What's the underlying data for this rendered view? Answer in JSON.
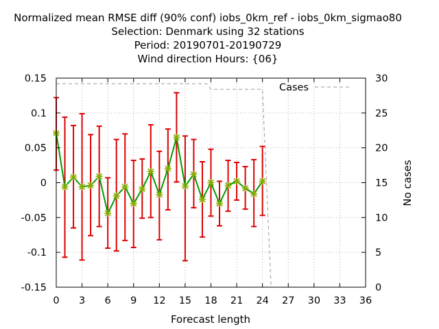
{
  "chart_data": {
    "type": "line",
    "title_lines": [
      "Normalized mean RMSE diff (90% conf) iobs_0km_ref - iobs_0km_sigmao80",
      "Selection: Denmark using    32 stations",
      "Period: 20190701-20190729",
      "Wind direction   Hours: {06}"
    ],
    "xlabel": "Forecast length",
    "ylabel": "",
    "y2label": "No cases",
    "xlim": [
      0,
      36
    ],
    "ylim": [
      -0.15,
      0.15
    ],
    "y2lim": [
      0,
      30
    ],
    "xticks": [
      "0",
      "3",
      "6",
      "9",
      "12",
      "15",
      "18",
      "21",
      "24",
      "27",
      "30",
      "33",
      "36"
    ],
    "yticks": [
      "0.15",
      "0.1",
      "0.05",
      "0",
      "-0.05",
      "-0.1",
      "-0.15"
    ],
    "y2ticks": [
      "30",
      "25",
      "20",
      "15",
      "10",
      "5",
      "0"
    ],
    "grid": true,
    "legend_position": "top-right",
    "series": [
      {
        "name": "",
        "color": "#009900",
        "marker_color": "#88aa00",
        "errorbar_color": "#dd0000",
        "x": [
          0,
          1,
          2,
          3,
          4,
          5,
          6,
          7,
          8,
          9,
          10,
          11,
          12,
          13,
          14,
          15,
          16,
          17,
          18,
          19,
          20,
          21,
          22,
          23,
          24
        ],
        "y": [
          0.071,
          -0.006,
          0.008,
          -0.006,
          -0.004,
          0.009,
          -0.044,
          -0.019,
          -0.006,
          -0.03,
          -0.009,
          0.016,
          -0.017,
          0.02,
          0.065,
          -0.005,
          0.012,
          -0.024,
          0.0,
          -0.03,
          -0.004,
          0.002,
          -0.008,
          -0.016,
          0.002
        ],
        "err_low": [
          0.018,
          -0.107,
          -0.065,
          -0.111,
          -0.076,
          -0.063,
          -0.094,
          -0.098,
          -0.083,
          -0.093,
          -0.051,
          -0.05,
          -0.082,
          -0.039,
          0.001,
          -0.112,
          -0.036,
          -0.078,
          -0.048,
          -0.062,
          -0.041,
          -0.025,
          -0.038,
          -0.063,
          -0.047
        ],
        "err_high": [
          0.122,
          0.094,
          0.082,
          0.099,
          0.069,
          0.081,
          0.007,
          0.062,
          0.07,
          0.032,
          0.034,
          0.083,
          0.045,
          0.077,
          0.129,
          0.067,
          0.062,
          0.03,
          0.048,
          0.002,
          0.032,
          0.029,
          0.023,
          0.033,
          0.052
        ]
      },
      {
        "name": "Cases",
        "axis": "y2",
        "color": "#999999",
        "style": "dashed",
        "x": [
          0,
          17.5,
          18,
          24,
          25,
          36
        ],
        "y": [
          29.2,
          29.2,
          28.4,
          28.4,
          0,
          0
        ]
      }
    ]
  }
}
